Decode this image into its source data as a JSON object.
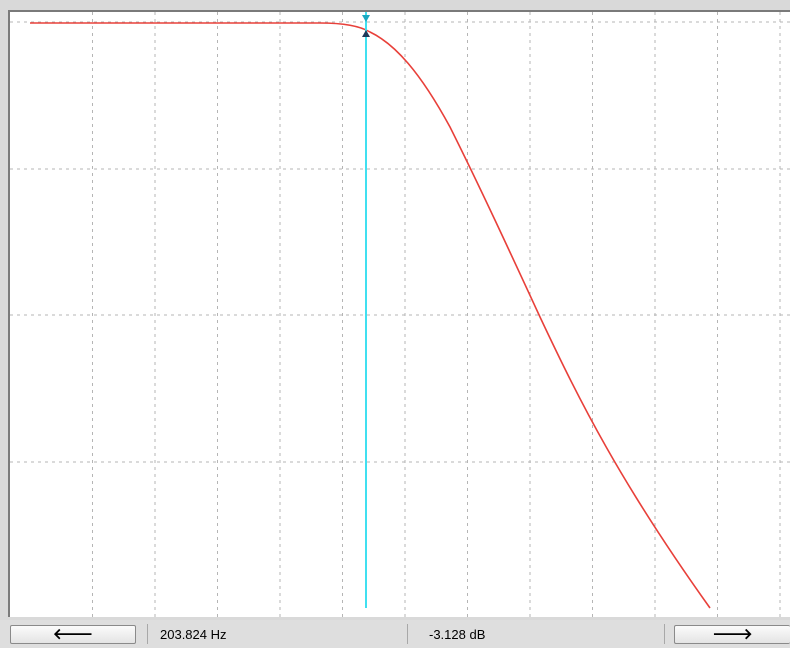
{
  "plot": {
    "grid_columns": 12,
    "grid_rows": 4,
    "grid_color": "#b5b5b5",
    "curve_color": "#e8403a",
    "cursor_color": "#40e0f0",
    "background": "#ffffff"
  },
  "cursor": {
    "frequency_readout": "203.824 Hz",
    "magnitude_readout": "-3.128 dB"
  },
  "controls": {
    "left_arrow_icon": "left-arrow-icon",
    "left_arrow_glyph": "🡐",
    "right_arrow_icon": "right-arrow-icon",
    "right_arrow_glyph": "🡒"
  }
}
